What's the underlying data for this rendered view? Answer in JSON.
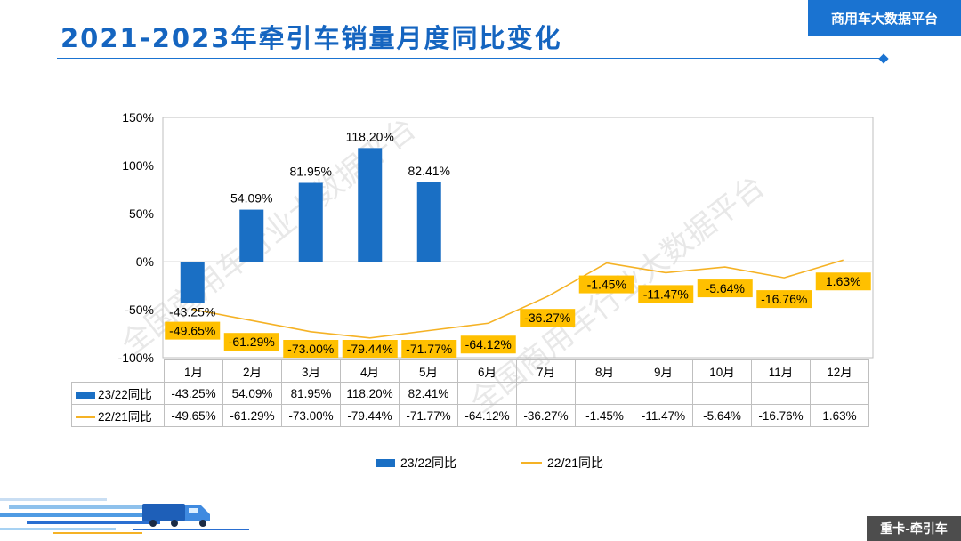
{
  "page": {
    "title": "2021-2023年牵引车销量月度同比变化",
    "brand": "商用车大数据平台",
    "footer": "重卡-牵引车",
    "watermark": "全国商用车行业大数据平台"
  },
  "colors": {
    "bar": "#1a6fc4",
    "line": "#f5b225",
    "label_bg": "#ffc000",
    "title": "#1565c0"
  },
  "chart_data": {
    "type": "bar",
    "categories": [
      "1月",
      "2月",
      "3月",
      "4月",
      "5月",
      "6月",
      "7月",
      "8月",
      "9月",
      "10月",
      "11月",
      "12月"
    ],
    "series": [
      {
        "name": "23/22同比",
        "type": "bar",
        "values": [
          -43.25,
          54.09,
          81.95,
          118.2,
          82.41,
          null,
          null,
          null,
          null,
          null,
          null,
          null
        ],
        "labels": [
          "-43.25%",
          "54.09%",
          "81.95%",
          "118.20%",
          "82.41%",
          "",
          "",
          "",
          "",
          "",
          "",
          ""
        ]
      },
      {
        "name": "22/21同比",
        "type": "line",
        "values": [
          -49.65,
          -61.29,
          -73.0,
          -79.44,
          -71.77,
          -64.12,
          -36.27,
          -1.45,
          -11.47,
          -5.64,
          -16.76,
          1.63
        ],
        "labels": [
          "-49.65%",
          "-61.29%",
          "-73.00%",
          "-79.44%",
          "-71.77%",
          "-64.12%",
          "-36.27%",
          "-1.45%",
          "-11.47%",
          "-5.64%",
          "-16.76%",
          "1.63%"
        ]
      }
    ],
    "y_ticks": [
      "150%",
      "100%",
      "50%",
      "0%",
      "-50%",
      "-100%"
    ],
    "ylim": [
      -100,
      150
    ],
    "legend": "bottom",
    "data_table": true
  }
}
